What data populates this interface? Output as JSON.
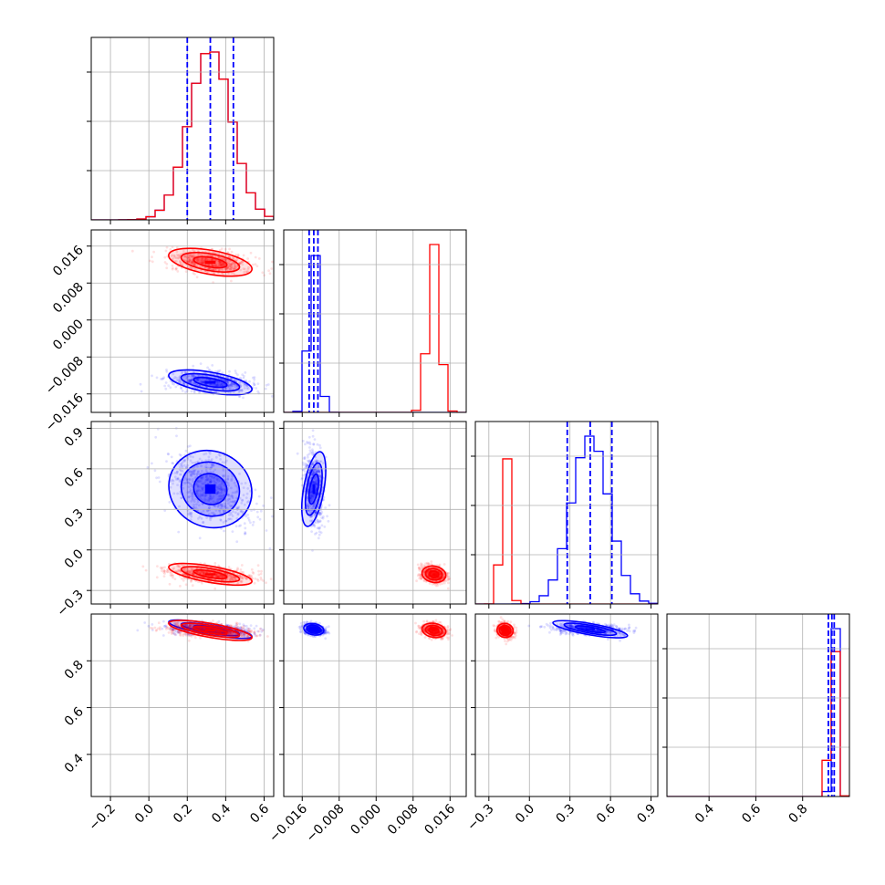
{
  "chart_data": {
    "type": "corner",
    "grid": true,
    "colors": {
      "series_a": "#0000ff",
      "series_b": "#ff0000"
    },
    "parameters": [
      {
        "range": [
          -0.3,
          0.65
        ],
        "ticks": [
          -0.2,
          0.0,
          0.2,
          0.4,
          0.6
        ],
        "tick_labels": [
          "−0.2",
          "0.0",
          "0.2",
          "0.4",
          "0.6"
        ]
      },
      {
        "range": [
          -0.02,
          0.0195
        ],
        "ticks": [
          -0.016,
          -0.008,
          0.0,
          0.008,
          0.016
        ],
        "tick_labels": [
          "−0.016",
          "−0.008",
          "0.000",
          "0.008",
          "0.016"
        ]
      },
      {
        "range": [
          -0.4,
          0.95
        ],
        "ticks": [
          -0.3,
          0.0,
          0.3,
          0.6,
          0.9
        ],
        "tick_labels": [
          "−0.3",
          "0.0",
          "0.3",
          "0.6",
          "0.9"
        ]
      },
      {
        "range": [
          0.22,
          1.0
        ],
        "ticks": [
          0.4,
          0.6,
          0.8
        ],
        "tick_labels": [
          "0.4",
          "0.6",
          "0.8"
        ]
      }
    ],
    "series": [
      {
        "color": "#0000ff",
        "params": [
          {
            "mean": 0.32,
            "sd": 0.11,
            "q": [
              0.2,
              0.32,
              0.44
            ]
          },
          {
            "mean": -0.0135,
            "sd": 0.0011,
            "q": [
              -0.0145,
              -0.0135,
              -0.0126
            ]
          },
          {
            "mean": 0.45,
            "sd": 0.14,
            "q": [
              0.28,
              0.45,
              0.61
            ]
          },
          {
            "mean": 0.935,
            "sd": 0.012,
            "q": [
              0.91,
              0.925,
              0.935
            ]
          }
        ]
      },
      {
        "color": "#ff0000",
        "params": [
          {
            "mean": 0.32,
            "sd": 0.11
          },
          {
            "mean": 0.0125,
            "sd": 0.0013
          },
          {
            "mean": -0.18,
            "sd": 0.03
          },
          {
            "mean": 0.93,
            "sd": 0.015
          }
        ]
      }
    ]
  }
}
